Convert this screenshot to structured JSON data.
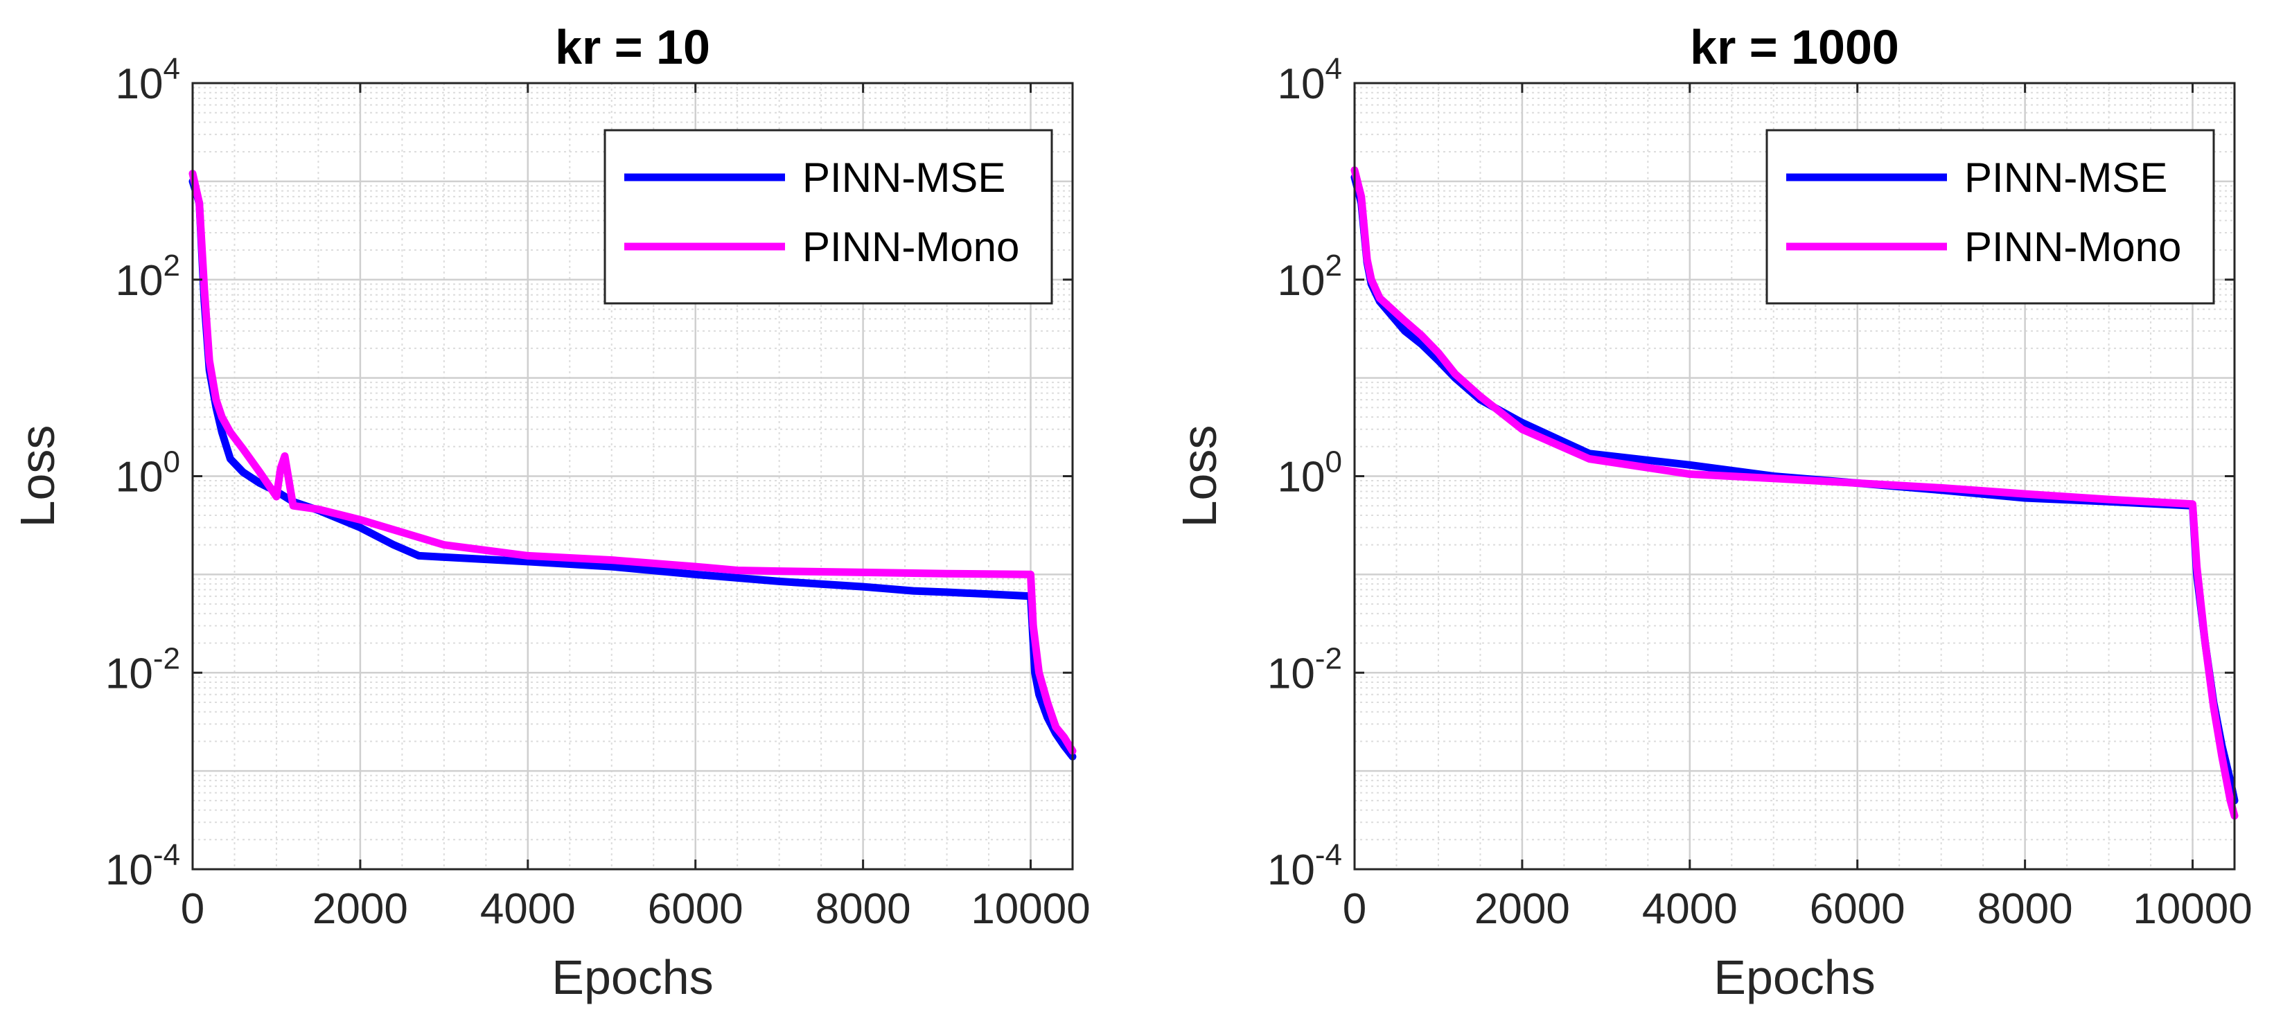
{
  "chart_data": [
    {
      "type": "line",
      "title": "kr = 10",
      "xlabel": "Epochs",
      "ylabel": "Loss",
      "yscale": "log",
      "xlim": [
        0,
        10500
      ],
      "ylim": [
        0.0001,
        10000
      ],
      "xticks": [
        0,
        2000,
        4000,
        6000,
        8000,
        10000
      ],
      "xtick_labels": [
        "0",
        "2000",
        "4000",
        "6000",
        "8000",
        "10000"
      ],
      "yticks": [
        0.0001,
        0.01,
        1,
        100,
        10000
      ],
      "ytick_labels": [
        {
          "base": "10",
          "exp": "-4"
        },
        {
          "base": "10",
          "exp": "-2"
        },
        {
          "base": "10",
          "exp": "0"
        },
        {
          "base": "10",
          "exp": "2"
        },
        {
          "base": "10",
          "exp": "4"
        }
      ],
      "grid": true,
      "minor_grid": true,
      "legend_position": "top-right",
      "series": [
        {
          "name": "PINN-MSE",
          "color": "#0000ff",
          "x": [
            0,
            80,
            140,
            200,
            280,
            350,
            450,
            600,
            800,
            1000,
            1200,
            1500,
            2000,
            2400,
            2700,
            3000,
            4000,
            5000,
            6000,
            7000,
            8000,
            8600,
            9000,
            9500,
            10000,
            10050,
            10100,
            10200,
            10300,
            10400,
            10500
          ],
          "y": [
            1000,
            600,
            60,
            12,
            5,
            2.8,
            1.5,
            1.1,
            0.85,
            0.7,
            0.55,
            0.45,
            0.3,
            0.2,
            0.155,
            0.15,
            0.135,
            0.12,
            0.1,
            0.085,
            0.075,
            0.068,
            0.066,
            0.063,
            0.06,
            0.01,
            0.006,
            0.0035,
            0.0024,
            0.0018,
            0.0014
          ]
        },
        {
          "name": "PINN-Mono",
          "color": "#ff00ff",
          "x": [
            0,
            80,
            140,
            200,
            280,
            350,
            450,
            600,
            800,
            1000,
            1050,
            1100,
            1200,
            1500,
            2000,
            3000,
            4000,
            5000,
            6000,
            6500,
            7000,
            8000,
            9000,
            10000,
            10030,
            10100,
            10200,
            10300,
            10400,
            10500
          ],
          "y": [
            1200,
            600,
            80,
            15,
            6,
            4,
            2.8,
            1.9,
            1.1,
            0.62,
            1.2,
            1.6,
            0.5,
            0.46,
            0.36,
            0.2,
            0.155,
            0.14,
            0.12,
            0.11,
            0.108,
            0.105,
            0.102,
            0.1,
            0.03,
            0.01,
            0.005,
            0.0028,
            0.0022,
            0.0016
          ]
        }
      ]
    },
    {
      "type": "line",
      "title": "kr = 1000",
      "xlabel": "Epochs",
      "ylabel": "Loss",
      "yscale": "log",
      "xlim": [
        0,
        10500
      ],
      "ylim": [
        0.0001,
        10000
      ],
      "xticks": [
        0,
        2000,
        4000,
        6000,
        8000,
        10000
      ],
      "xtick_labels": [
        "0",
        "2000",
        "4000",
        "6000",
        "8000",
        "10000"
      ],
      "yticks": [
        0.0001,
        0.01,
        1,
        100,
        10000
      ],
      "ytick_labels": [
        {
          "base": "10",
          "exp": "-4"
        },
        {
          "base": "10",
          "exp": "-2"
        },
        {
          "base": "10",
          "exp": "0"
        },
        {
          "base": "10",
          "exp": "2"
        },
        {
          "base": "10",
          "exp": "4"
        }
      ],
      "grid": true,
      "minor_grid": true,
      "legend_position": "top-right",
      "series": [
        {
          "name": "PINN-MSE",
          "color": "#0000ff",
          "x": [
            0,
            80,
            150,
            200,
            300,
            600,
            800,
            1000,
            1200,
            1500,
            2000,
            2800,
            4000,
            5000,
            6000,
            7000,
            8000,
            9000,
            10000,
            10050,
            10150,
            10250,
            10350,
            10450,
            10500
          ],
          "y": [
            1100,
            600,
            150,
            90,
            60,
            30,
            22,
            15,
            10,
            6,
            3.5,
            1.7,
            1.3,
            1.0,
            0.85,
            0.72,
            0.6,
            0.55,
            0.5,
            0.1,
            0.02,
            0.005,
            0.0018,
            0.0008,
            0.0005
          ]
        },
        {
          "name": "PINN-Mono",
          "color": "#ff00ff",
          "x": [
            0,
            80,
            150,
            200,
            300,
            600,
            800,
            1000,
            1200,
            1500,
            2000,
            2800,
            4000,
            5000,
            6000,
            7000,
            8000,
            9000,
            10000,
            10050,
            10150,
            10250,
            10350,
            10450,
            10500
          ],
          "y": [
            1300,
            700,
            160,
            100,
            65,
            38,
            27,
            18,
            11,
            6.5,
            3.0,
            1.5,
            1.05,
            0.95,
            0.85,
            0.76,
            0.66,
            0.58,
            0.52,
            0.12,
            0.02,
            0.0045,
            0.0014,
            0.0005,
            0.00035
          ]
        }
      ]
    }
  ]
}
